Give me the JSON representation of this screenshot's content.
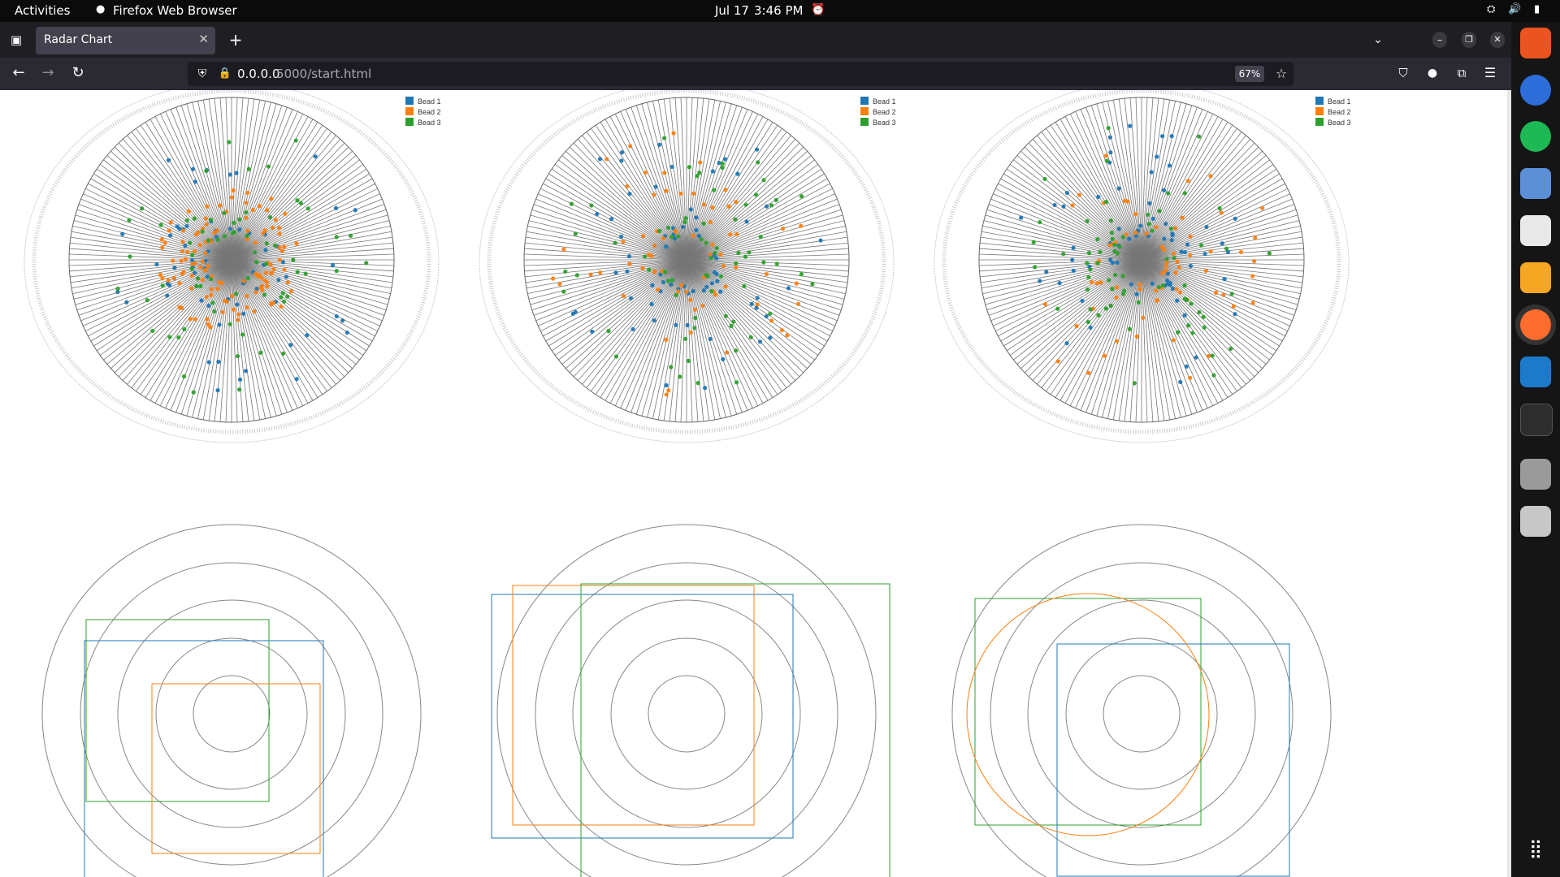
{
  "system_bar": {
    "activities": "Activities",
    "app_name": "Firefox Web Browser",
    "date": "Jul 17",
    "time": "3:46 PM"
  },
  "browser": {
    "tab_title": "Radar Chart",
    "url_host": "0.0.0.0",
    "url_rest": ":5000/start.html",
    "zoom": "67%"
  },
  "dock_apps": [
    "App Center",
    "Help",
    "Spotify",
    "Files",
    "Sudoku",
    "Calculator",
    "Firefox",
    "Visual Studio Code",
    "Terminal",
    "SSD",
    "Trash",
    "Show Apps"
  ],
  "chart_data": [
    {
      "type": "scatter",
      "subtype": "polar-radar",
      "sector_labels": "Sector 1 … Sector 360",
      "series": [
        {
          "name": "Bead 1",
          "color": "#1f77b4"
        },
        {
          "name": "Bead 2",
          "color": "#ff7f0e"
        },
        {
          "name": "Bead 3",
          "color": "#2ca02c"
        }
      ],
      "legend": "top-right"
    },
    {
      "type": "scatter",
      "subtype": "polar-radar",
      "sector_labels": "Sector 1 … Sector 360",
      "series": [
        {
          "name": "Bead 1",
          "color": "#1f77b4"
        },
        {
          "name": "Bead 2",
          "color": "#ff7f0e"
        },
        {
          "name": "Bead 3",
          "color": "#2ca02c"
        }
      ],
      "legend": "top-right"
    },
    {
      "type": "scatter",
      "subtype": "polar-radar",
      "sector_labels": "Sector 1 … Sector 360",
      "series": [
        {
          "name": "Bead 1",
          "color": "#1f77b4"
        },
        {
          "name": "Bead 2",
          "color": "#ff7f0e"
        },
        {
          "name": "Bead 3",
          "color": "#2ca02c"
        }
      ],
      "legend": "top-right"
    }
  ]
}
